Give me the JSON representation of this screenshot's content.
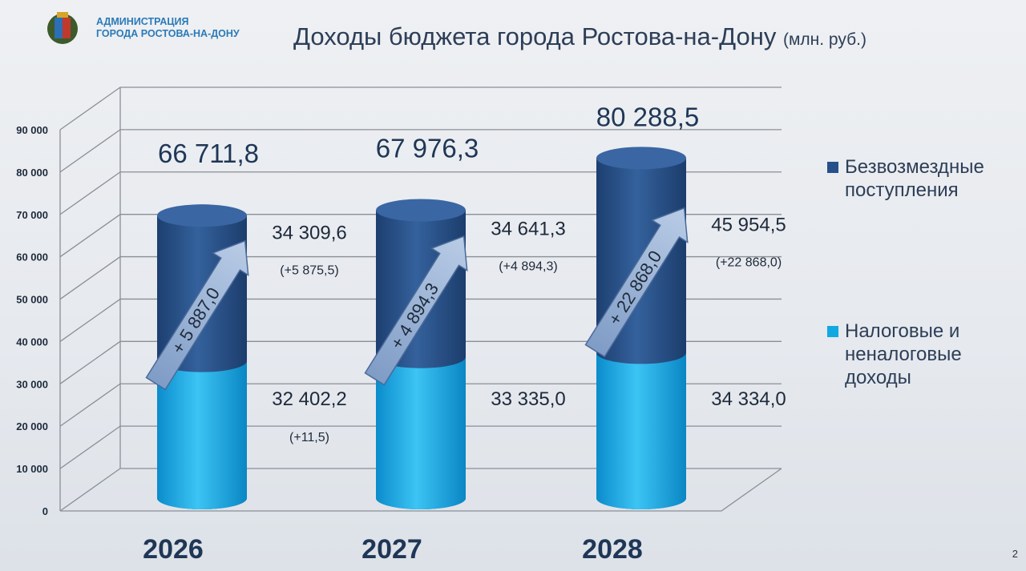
{
  "header": {
    "org_line1": "АДМИНИСТРАЦИЯ",
    "org_line2": "ГОРОДА РОСТОВА-НА-ДОНУ",
    "title": "Доходы бюджета города Ростова-на-Дону",
    "unit": "(млн. руб.)"
  },
  "page_number": "2",
  "chart_data": {
    "type": "bar",
    "stacked": true,
    "style": "3d-cylinder",
    "categories": [
      "2026",
      "2027",
      "2028"
    ],
    "ylim": [
      0,
      90000
    ],
    "yticks": [
      "0",
      "10 000",
      "20 000",
      "30 000",
      "40 000",
      "50 000",
      "60 000",
      "70 000",
      "80 000",
      "90 000"
    ],
    "grid": true,
    "legend_position": "right",
    "series": [
      {
        "name": "Налоговые и неналоговые доходы",
        "color": "#12a9e3",
        "values": [
          32402.2,
          33335.0,
          34334.0
        ],
        "labels": [
          "32 402,2",
          "33 335,0",
          "34 334,0"
        ],
        "changes": [
          "(+11,5)",
          "",
          ""
        ]
      },
      {
        "name": "Безвозмездные поступления",
        "color": "#27508a",
        "values": [
          34309.6,
          34641.3,
          45954.5
        ],
        "labels": [
          "34 309,6",
          "34 641,3",
          "45 954,5"
        ],
        "changes": [
          "(+5 875,5)",
          "(+4 894,3)",
          "(+22 868,0)"
        ]
      }
    ],
    "totals": [
      "66 711,8",
      "67 976,3",
      "80 288,5"
    ],
    "total_values": [
      66711.8,
      67976.3,
      80288.5
    ],
    "arrow_labels": [
      "+ 5 887,0",
      "+ 4 894,3",
      "+ 22 868,0"
    ]
  },
  "legend": {
    "item1_line1": "Безвозмездные",
    "item1_line2": "поступления",
    "item2_line1": "Налоговые и",
    "item2_line2": "неналоговые",
    "item2_line3": "доходы"
  }
}
